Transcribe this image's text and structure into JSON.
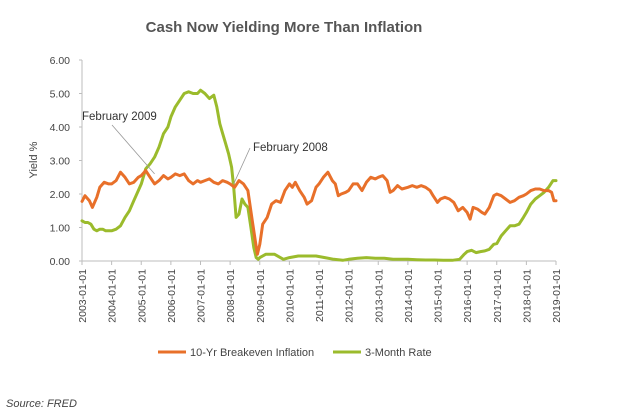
{
  "chart_data": {
    "type": "line",
    "title": "Cash Now Yielding More Than Inflation",
    "ylabel": "Yield %",
    "ylim": [
      0,
      6
    ],
    "yticks": [
      "0.00",
      "1.00",
      "2.00",
      "3.00",
      "4.00",
      "5.00",
      "6.00"
    ],
    "xlim": [
      2003.0,
      2019.0
    ],
    "xticks": [
      "2003-01-01",
      "2004-01-01",
      "2005-01-01",
      "2006-01-01",
      "2007-01-01",
      "2008-01-01",
      "2009-01-01",
      "2010-01-01",
      "2011-01-01",
      "2012-01-01",
      "2013-01-01",
      "2014-01-01",
      "2015-01-01",
      "2016-01-01",
      "2017-01-01",
      "2018-01-01",
      "2019-01-01"
    ],
    "legend_position": "bottom",
    "colors": {
      "breakeven": "#E8702A",
      "tbill": "#9BBB2C"
    },
    "series": [
      {
        "name": "10-Yr Breakeven Inflation",
        "color": "#E8702A",
        "points": [
          [
            2003.0,
            1.78
          ],
          [
            2003.1,
            1.95
          ],
          [
            2003.25,
            1.8
          ],
          [
            2003.35,
            1.6
          ],
          [
            2003.5,
            1.9
          ],
          [
            2003.6,
            2.2
          ],
          [
            2003.75,
            2.35
          ],
          [
            2003.9,
            2.3
          ],
          [
            2004.0,
            2.3
          ],
          [
            2004.15,
            2.4
          ],
          [
            2004.3,
            2.65
          ],
          [
            2004.45,
            2.5
          ],
          [
            2004.6,
            2.3
          ],
          [
            2004.75,
            2.35
          ],
          [
            2004.9,
            2.5
          ],
          [
            2005.0,
            2.55
          ],
          [
            2005.15,
            2.7
          ],
          [
            2005.3,
            2.5
          ],
          [
            2005.45,
            2.3
          ],
          [
            2005.6,
            2.4
          ],
          [
            2005.75,
            2.55
          ],
          [
            2005.9,
            2.45
          ],
          [
            2006.0,
            2.5
          ],
          [
            2006.15,
            2.6
          ],
          [
            2006.3,
            2.55
          ],
          [
            2006.45,
            2.6
          ],
          [
            2006.6,
            2.4
          ],
          [
            2006.75,
            2.3
          ],
          [
            2006.9,
            2.4
          ],
          [
            2007.0,
            2.35
          ],
          [
            2007.15,
            2.4
          ],
          [
            2007.3,
            2.45
          ],
          [
            2007.45,
            2.35
          ],
          [
            2007.6,
            2.3
          ],
          [
            2007.75,
            2.4
          ],
          [
            2007.9,
            2.35
          ],
          [
            2008.0,
            2.3
          ],
          [
            2008.15,
            2.2
          ],
          [
            2008.3,
            2.4
          ],
          [
            2008.45,
            2.3
          ],
          [
            2008.6,
            2.1
          ],
          [
            2008.75,
            1.2
          ],
          [
            2008.85,
            0.6
          ],
          [
            2008.92,
            0.2
          ],
          [
            2009.0,
            0.5
          ],
          [
            2009.1,
            1.1
          ],
          [
            2009.25,
            1.3
          ],
          [
            2009.4,
            1.7
          ],
          [
            2009.55,
            1.8
          ],
          [
            2009.7,
            1.75
          ],
          [
            2009.85,
            2.1
          ],
          [
            2010.0,
            2.3
          ],
          [
            2010.1,
            2.2
          ],
          [
            2010.2,
            2.35
          ],
          [
            2010.35,
            2.1
          ],
          [
            2010.5,
            1.9
          ],
          [
            2010.6,
            1.7
          ],
          [
            2010.75,
            1.8
          ],
          [
            2010.9,
            2.2
          ],
          [
            2011.0,
            2.3
          ],
          [
            2011.15,
            2.5
          ],
          [
            2011.3,
            2.65
          ],
          [
            2011.45,
            2.4
          ],
          [
            2011.55,
            2.3
          ],
          [
            2011.65,
            1.95
          ],
          [
            2011.75,
            2.0
          ],
          [
            2011.9,
            2.05
          ],
          [
            2012.0,
            2.1
          ],
          [
            2012.15,
            2.3
          ],
          [
            2012.3,
            2.3
          ],
          [
            2012.45,
            2.1
          ],
          [
            2012.6,
            2.35
          ],
          [
            2012.75,
            2.5
          ],
          [
            2012.9,
            2.45
          ],
          [
            2013.0,
            2.5
          ],
          [
            2013.15,
            2.55
          ],
          [
            2013.3,
            2.4
          ],
          [
            2013.4,
            2.05
          ],
          [
            2013.5,
            2.1
          ],
          [
            2013.65,
            2.25
          ],
          [
            2013.8,
            2.15
          ],
          [
            2014.0,
            2.2
          ],
          [
            2014.15,
            2.25
          ],
          [
            2014.3,
            2.2
          ],
          [
            2014.45,
            2.25
          ],
          [
            2014.6,
            2.2
          ],
          [
            2014.75,
            2.1
          ],
          [
            2014.85,
            1.95
          ],
          [
            2015.0,
            1.75
          ],
          [
            2015.1,
            1.85
          ],
          [
            2015.25,
            1.9
          ],
          [
            2015.4,
            1.85
          ],
          [
            2015.55,
            1.75
          ],
          [
            2015.7,
            1.5
          ],
          [
            2015.85,
            1.6
          ],
          [
            2016.0,
            1.45
          ],
          [
            2016.1,
            1.25
          ],
          [
            2016.2,
            1.6
          ],
          [
            2016.35,
            1.55
          ],
          [
            2016.5,
            1.45
          ],
          [
            2016.6,
            1.4
          ],
          [
            2016.75,
            1.6
          ],
          [
            2016.9,
            1.95
          ],
          [
            2017.0,
            2.0
          ],
          [
            2017.15,
            1.95
          ],
          [
            2017.3,
            1.85
          ],
          [
            2017.45,
            1.75
          ],
          [
            2017.6,
            1.8
          ],
          [
            2017.75,
            1.9
          ],
          [
            2017.9,
            1.95
          ],
          [
            2018.0,
            2.0
          ],
          [
            2018.15,
            2.1
          ],
          [
            2018.3,
            2.15
          ],
          [
            2018.45,
            2.15
          ],
          [
            2018.6,
            2.1
          ],
          [
            2018.75,
            2.1
          ],
          [
            2018.85,
            2.05
          ],
          [
            2018.93,
            1.8
          ],
          [
            2019.0,
            1.8
          ]
        ]
      },
      {
        "name": "3-Month Rate",
        "color": "#9BBB2C",
        "points": [
          [
            2003.0,
            1.2
          ],
          [
            2003.1,
            1.15
          ],
          [
            2003.2,
            1.15
          ],
          [
            2003.3,
            1.1
          ],
          [
            2003.4,
            0.95
          ],
          [
            2003.5,
            0.9
          ],
          [
            2003.6,
            0.95
          ],
          [
            2003.7,
            0.95
          ],
          [
            2003.8,
            0.9
          ],
          [
            2003.9,
            0.9
          ],
          [
            2004.0,
            0.9
          ],
          [
            2004.15,
            0.95
          ],
          [
            2004.3,
            1.05
          ],
          [
            2004.45,
            1.3
          ],
          [
            2004.6,
            1.5
          ],
          [
            2004.75,
            1.8
          ],
          [
            2004.9,
            2.1
          ],
          [
            2005.0,
            2.3
          ],
          [
            2005.15,
            2.75
          ],
          [
            2005.3,
            2.9
          ],
          [
            2005.45,
            3.1
          ],
          [
            2005.6,
            3.4
          ],
          [
            2005.75,
            3.8
          ],
          [
            2005.9,
            4.0
          ],
          [
            2006.0,
            4.3
          ],
          [
            2006.15,
            4.6
          ],
          [
            2006.3,
            4.8
          ],
          [
            2006.45,
            5.0
          ],
          [
            2006.6,
            5.05
          ],
          [
            2006.75,
            5.0
          ],
          [
            2006.9,
            5.0
          ],
          [
            2007.0,
            5.1
          ],
          [
            2007.15,
            5.0
          ],
          [
            2007.3,
            4.85
          ],
          [
            2007.45,
            4.95
          ],
          [
            2007.55,
            4.6
          ],
          [
            2007.65,
            4.1
          ],
          [
            2007.75,
            3.8
          ],
          [
            2007.85,
            3.5
          ],
          [
            2007.95,
            3.2
          ],
          [
            2008.05,
            2.8
          ],
          [
            2008.12,
            2.2
          ],
          [
            2008.2,
            1.3
          ],
          [
            2008.3,
            1.4
          ],
          [
            2008.4,
            1.85
          ],
          [
            2008.5,
            1.7
          ],
          [
            2008.6,
            1.6
          ],
          [
            2008.7,
            1.0
          ],
          [
            2008.8,
            0.4
          ],
          [
            2008.88,
            0.1
          ],
          [
            2008.95,
            0.05
          ],
          [
            2009.0,
            0.1
          ],
          [
            2009.2,
            0.2
          ],
          [
            2009.5,
            0.2
          ],
          [
            2009.8,
            0.05
          ],
          [
            2010.0,
            0.1
          ],
          [
            2010.3,
            0.15
          ],
          [
            2010.6,
            0.15
          ],
          [
            2010.9,
            0.15
          ],
          [
            2011.2,
            0.1
          ],
          [
            2011.5,
            0.05
          ],
          [
            2011.8,
            0.02
          ],
          [
            2012.0,
            0.05
          ],
          [
            2012.3,
            0.08
          ],
          [
            2012.6,
            0.1
          ],
          [
            2012.9,
            0.08
          ],
          [
            2013.2,
            0.08
          ],
          [
            2013.5,
            0.05
          ],
          [
            2013.8,
            0.05
          ],
          [
            2014.0,
            0.05
          ],
          [
            2014.3,
            0.04
          ],
          [
            2014.6,
            0.03
          ],
          [
            2014.9,
            0.03
          ],
          [
            2015.2,
            0.02
          ],
          [
            2015.5,
            0.02
          ],
          [
            2015.75,
            0.05
          ],
          [
            2015.9,
            0.2
          ],
          [
            2016.0,
            0.28
          ],
          [
            2016.15,
            0.32
          ],
          [
            2016.3,
            0.25
          ],
          [
            2016.45,
            0.28
          ],
          [
            2016.6,
            0.3
          ],
          [
            2016.75,
            0.35
          ],
          [
            2016.9,
            0.5
          ],
          [
            2017.0,
            0.52
          ],
          [
            2017.15,
            0.75
          ],
          [
            2017.3,
            0.9
          ],
          [
            2017.45,
            1.05
          ],
          [
            2017.6,
            1.05
          ],
          [
            2017.75,
            1.1
          ],
          [
            2017.9,
            1.3
          ],
          [
            2018.0,
            1.45
          ],
          [
            2018.15,
            1.7
          ],
          [
            2018.3,
            1.85
          ],
          [
            2018.45,
            1.95
          ],
          [
            2018.6,
            2.05
          ],
          [
            2018.75,
            2.2
          ],
          [
            2018.9,
            2.4
          ],
          [
            2019.0,
            2.4
          ]
        ]
      }
    ],
    "annotations": [
      {
        "text": "February 2009",
        "x": 2005.45,
        "y": 2.6
      },
      {
        "text": "February 2008",
        "x": 2008.12,
        "y": 2.3
      }
    ]
  },
  "source": "Source: FRED"
}
